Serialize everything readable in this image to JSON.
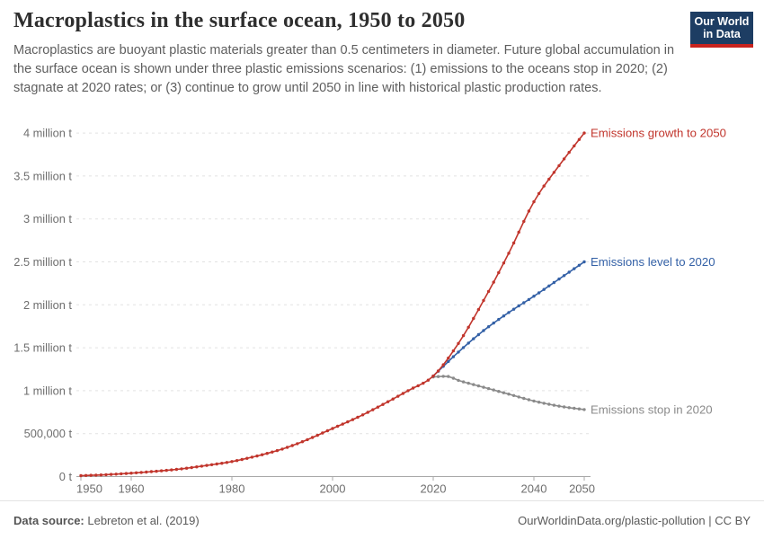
{
  "header": {
    "title": "Macroplastics in the surface ocean, 1950 to 2050",
    "subtitle": "Macroplastics are buoyant plastic materials greater than 0.5 centimeters in diameter. Future global accumulation in the surface ocean is shown under three plastic emissions scenarios: (1) emissions to the oceans stop in 2020; (2) stagnate at 2020 rates; or (3) continue to grow until 2050 in line with historical plastic production rates."
  },
  "logo": {
    "line1": "Our World",
    "line2": "in Data",
    "background": "#1d3d63",
    "stripe": "#c8231e"
  },
  "footer": {
    "source_label": "Data source:",
    "source_value": " Lebreton et al. (2019)",
    "right_text": "OurWorldinData.org/plastic-pollution | CC BY"
  },
  "chart_data": {
    "type": "line",
    "title": "Macroplastics in the surface ocean, 1950 to 2050",
    "unit": "tonnes",
    "xlim": [
      1950,
      2052
    ],
    "ylim": [
      0,
      4000000
    ],
    "grid": "horizontal dashed, no vertical gridlines",
    "legend_position": "labels at right end of each line",
    "x_ticks": [
      1950,
      1960,
      1980,
      2000,
      2020,
      2040,
      2050
    ],
    "y_ticks": [
      {
        "value": 0,
        "label": "0 t"
      },
      {
        "value": 500000,
        "label": "500,000 t"
      },
      {
        "value": 1000000,
        "label": "1 million t"
      },
      {
        "value": 1500000,
        "label": "1.5 million t"
      },
      {
        "value": 2000000,
        "label": "2 million t"
      },
      {
        "value": 2500000,
        "label": "2.5 million t"
      },
      {
        "value": 3000000,
        "label": "3 million t"
      },
      {
        "value": 3500000,
        "label": "3.5 million t"
      },
      {
        "value": 4000000,
        "label": "4 million t"
      }
    ],
    "series": [
      {
        "name": "Emissions growth to 2050",
        "color": "#c1352c",
        "years": [
          1950,
          1955,
          1960,
          1965,
          1970,
          1975,
          1980,
          1985,
          1990,
          1995,
          2000,
          2005,
          2010,
          2015,
          2020,
          2025,
          2030,
          2035,
          2040,
          2045,
          2050
        ],
        "values": [
          10000,
          22000,
          40000,
          62000,
          90000,
          130000,
          175000,
          240000,
          320000,
          430000,
          560000,
          690000,
          840000,
          1000000,
          1170000,
          1550000,
          2050000,
          2600000,
          3200000,
          3620000,
          4000000
        ]
      },
      {
        "name": "Emissions level to 2020",
        "color": "#3360a6",
        "years": [
          2020,
          2025,
          2030,
          2035,
          2040,
          2045,
          2050
        ],
        "values": [
          1170000,
          1450000,
          1700000,
          1910000,
          2100000,
          2300000,
          2500000
        ]
      },
      {
        "name": "Emissions stop in 2020",
        "color": "#8a8a8a",
        "years": [
          2020,
          2023,
          2025,
          2030,
          2035,
          2040,
          2045,
          2050
        ],
        "values": [
          1160000,
          1165000,
          1120000,
          1040000,
          960000,
          880000,
          820000,
          780000
        ]
      }
    ]
  }
}
